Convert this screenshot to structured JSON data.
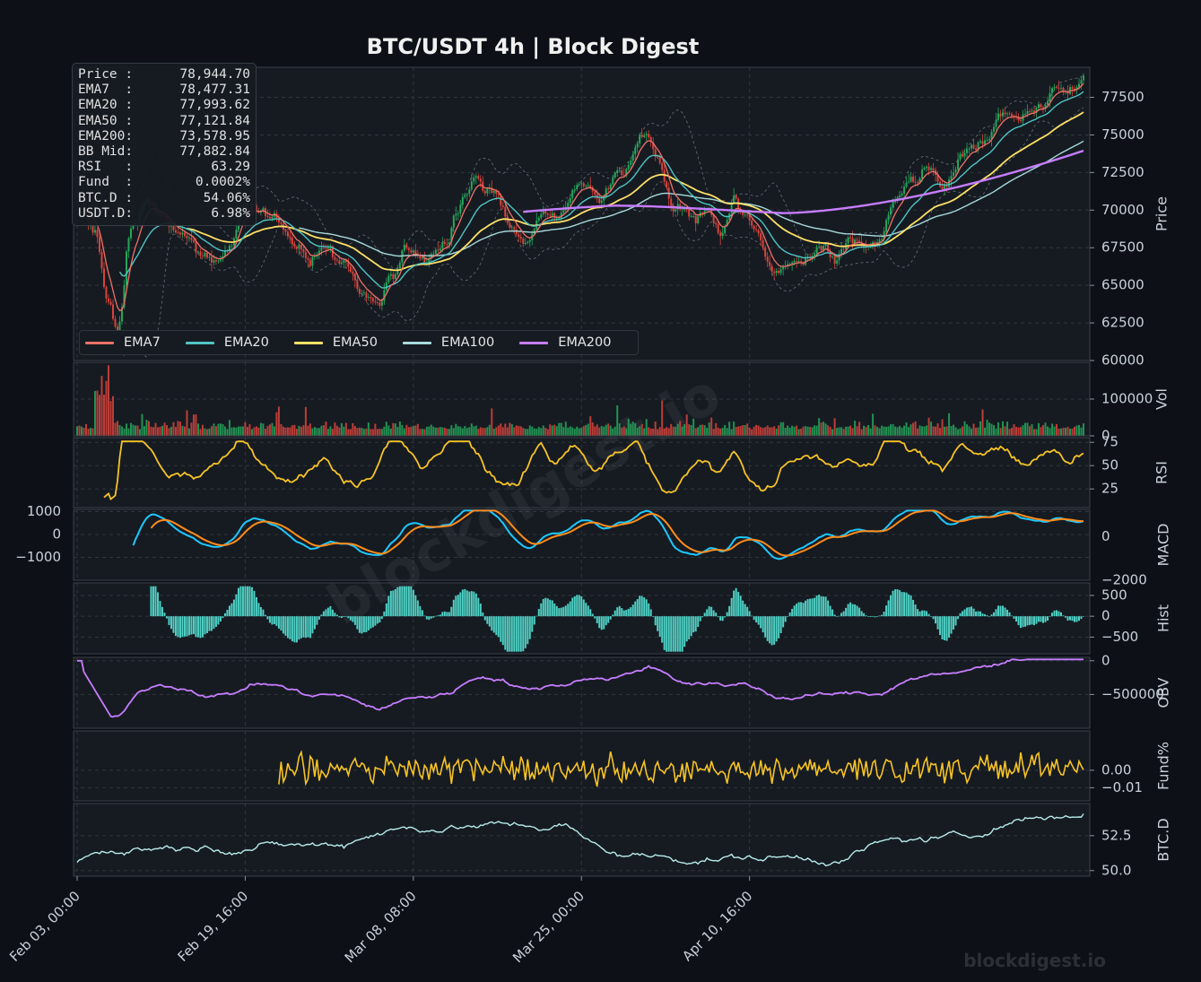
{
  "title": "BTC/USDT  4h  |  Block Digest",
  "watermark": "blockdigest.io",
  "footer_brand": "blockdigest.io",
  "colors": {
    "background": "#0d1117",
    "panel": "#161b22",
    "grid": "#30363d",
    "up": "#26a65b",
    "down": "#d9433b",
    "ema7": "#f07167",
    "ema20": "#4fc4c4",
    "ema50": "#ffe066",
    "ema100": "#a8dadc",
    "ema200": "#c77dff",
    "bb": "#8b949e",
    "rsi": "#f7c325",
    "macd": "#1ec8ff",
    "signal": "#ff8c1a",
    "hist": "#4fd1c5",
    "obv": "#c77dff",
    "funding": "#f7c325",
    "btcd": "#b8ecea"
  },
  "info_box": [
    {
      "label": "Price :",
      "value": "78,944.70"
    },
    {
      "label": "EMA7  :",
      "value": "78,477.31"
    },
    {
      "label": "EMA20 :",
      "value": "77,993.62"
    },
    {
      "label": "EMA50 :",
      "value": "77,121.84"
    },
    {
      "label": "EMA200:",
      "value": "73,578.95"
    },
    {
      "label": "BB Mid:",
      "value": "77,882.84"
    },
    {
      "label": "RSI   :",
      "value": "63.29"
    },
    {
      "label": "Fund  :",
      "value": "0.0002%"
    },
    {
      "label": "BTC.D :",
      "value": "54.06%"
    },
    {
      "label": "USDT.D:",
      "value": "6.98%"
    }
  ],
  "legend": [
    {
      "name": "EMA7",
      "color_key": "ema7"
    },
    {
      "name": "EMA20",
      "color_key": "ema20"
    },
    {
      "name": "EMA50",
      "color_key": "ema50"
    },
    {
      "name": "EMA100",
      "color_key": "ema100"
    },
    {
      "name": "EMA200",
      "color_key": "ema200"
    }
  ],
  "chart_data": {
    "type": "line",
    "x_ticks": [
      "Feb 03, 00:00",
      "Feb 19, 16:00",
      "Mar 08, 08:00",
      "Mar 25, 00:00",
      "Apr 10, 16:00"
    ],
    "bars_total": 450,
    "panels": [
      {
        "key": "price",
        "ylabel": "Price",
        "ylim": [
          60000,
          79500
        ],
        "ticks": [
          "60000",
          "62500",
          "65000",
          "67500",
          "70000",
          "72500",
          "75000",
          "77500"
        ],
        "tick_values": [
          60000,
          62500,
          65000,
          67500,
          70000,
          72500,
          75000,
          77500
        ],
        "tick_side": "right",
        "price_path": [
          [
            0,
            70800
          ],
          [
            8,
            68500
          ],
          [
            14,
            63200
          ],
          [
            18,
            61800
          ],
          [
            24,
            68800
          ],
          [
            34,
            70200
          ],
          [
            46,
            68600
          ],
          [
            56,
            66900
          ],
          [
            66,
            67300
          ],
          [
            76,
            70300
          ],
          [
            86,
            69800
          ],
          [
            94,
            67900
          ],
          [
            104,
            66800
          ],
          [
            112,
            67500
          ],
          [
            118,
            66400
          ],
          [
            122,
            65400
          ],
          [
            128,
            64100
          ],
          [
            134,
            63200
          ],
          [
            140,
            65600
          ],
          [
            148,
            67300
          ],
          [
            156,
            66600
          ],
          [
            164,
            67900
          ],
          [
            170,
            70600
          ],
          [
            178,
            72300
          ],
          [
            186,
            71100
          ],
          [
            194,
            69000
          ],
          [
            200,
            67600
          ],
          [
            206,
            69800
          ],
          [
            214,
            69600
          ],
          [
            224,
            71900
          ],
          [
            234,
            71100
          ],
          [
            244,
            72500
          ],
          [
            252,
            74700
          ],
          [
            258,
            73300
          ],
          [
            266,
            70300
          ],
          [
            274,
            69500
          ],
          [
            280,
            70100
          ],
          [
            288,
            68800
          ],
          [
            294,
            70600
          ],
          [
            302,
            68600
          ],
          [
            310,
            66000
          ],
          [
            318,
            66300
          ],
          [
            326,
            67100
          ],
          [
            332,
            67700
          ],
          [
            338,
            67200
          ],
          [
            346,
            68000
          ],
          [
            352,
            67300
          ],
          [
            358,
            68000
          ],
          [
            364,
            70400
          ],
          [
            372,
            72000
          ],
          [
            380,
            72600
          ],
          [
            388,
            71800
          ],
          [
            394,
            73500
          ],
          [
            400,
            74100
          ],
          [
            406,
            74800
          ],
          [
            412,
            76200
          ],
          [
            418,
            76400
          ],
          [
            424,
            76400
          ],
          [
            430,
            76900
          ],
          [
            436,
            78300
          ],
          [
            442,
            77800
          ],
          [
            449,
            78900
          ]
        ],
        "ema7_last": 78477.31,
        "ema20_last": 77993.62,
        "ema50_last": 77121.84,
        "ema100_last": 75500,
        "ema200_last": 73578.95,
        "bb_mid_last": 77882.84
      },
      {
        "key": "volume",
        "ylabel": "Vol",
        "ylim": [
          0,
          200000
        ],
        "ticks": [
          "0",
          "100000"
        ],
        "tick_values": [
          0,
          100000
        ],
        "tick_side": "right",
        "peak": 192000
      },
      {
        "key": "rsi",
        "ylabel": "RSI",
        "ylim": [
          5,
          80
        ],
        "ticks": [
          "25",
          "50",
          "75"
        ],
        "tick_values": [
          25,
          50,
          75
        ],
        "tick_side": "right",
        "last": 63.29
      },
      {
        "key": "macd",
        "ylabel": "MACD",
        "ylim": [
          -2000,
          1100
        ],
        "ticks_left": [
          "1000",
          "0",
          "−1000"
        ],
        "tick_values_left": [
          1000,
          0,
          -1000
        ],
        "ticks_right": [
          "0",
          "−2000"
        ],
        "tick_values_right": [
          0,
          -2000
        ]
      },
      {
        "key": "hist",
        "ylabel": "Hist",
        "ylim": [
          -900,
          800
        ],
        "ticks": [
          "500",
          "0",
          "−500"
        ],
        "tick_values": [
          500,
          0,
          -500
        ],
        "tick_side": "right"
      },
      {
        "key": "obv",
        "ylabel": "OBV",
        "ylim": [
          -1000000,
          50000
        ],
        "ticks": [
          "0",
          "−500000"
        ],
        "tick_values": [
          0,
          -500000
        ],
        "tick_side": "right"
      },
      {
        "key": "funding",
        "ylabel": "Fund%",
        "ylim": [
          -0.0175,
          0.0225
        ],
        "ticks": [
          "0.00",
          "−0.01"
        ],
        "tick_values": [
          0,
          -0.01
        ],
        "tick_side": "right",
        "last": 0.0002
      },
      {
        "key": "btcd",
        "ylabel": "BTC.D",
        "ylim": [
          49.6,
          54.8
        ],
        "ticks": [
          "50.0",
          "52.5"
        ],
        "tick_values": [
          50,
          52.5
        ],
        "tick_side": "right",
        "last": 54.06
      }
    ]
  }
}
